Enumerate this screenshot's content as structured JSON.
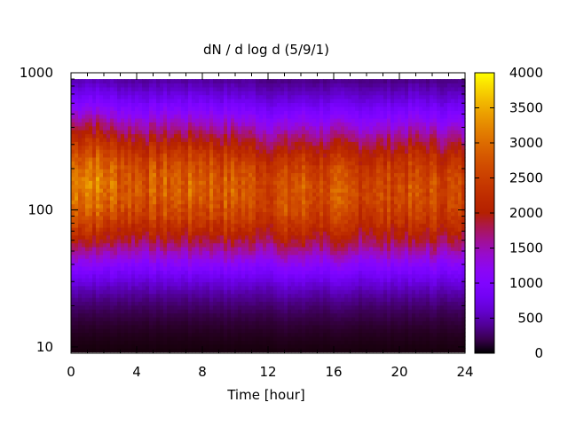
{
  "chart_data": {
    "type": "heatmap",
    "title": "dN / d log d (5/9/1)",
    "xlabel": "Time [hour]",
    "ylabel": "",
    "xlim": [
      0,
      24
    ],
    "ylim": [
      9,
      1000
    ],
    "y_scale": "log",
    "x_ticks": [
      "0",
      "4",
      "8",
      "12",
      "16",
      "20",
      "24"
    ],
    "y_ticks": [
      "10",
      "100",
      "1000"
    ],
    "colorbar": {
      "range": [
        0,
        4000
      ],
      "ticks": [
        "0",
        "500",
        "1000",
        "1500",
        "2000",
        "2500",
        "3000",
        "3500",
        "4000"
      ],
      "palette": "black-purple-red-orange-yellow"
    },
    "data_extent_y": [
      9.2,
      900
    ],
    "peak_band": {
      "diameter_center": 150,
      "diameter_range": [
        90,
        280
      ],
      "value_range": [
        2200,
        3300
      ]
    },
    "hourly_profile": {
      "hours": [
        0,
        1,
        2,
        3,
        4,
        5,
        6,
        7,
        8,
        9,
        10,
        11,
        12,
        13,
        14,
        15,
        16,
        17,
        18,
        19,
        20,
        21,
        22,
        23,
        24
      ],
      "peak_value": [
        3200,
        3350,
        3050,
        2950,
        2850,
        2800,
        2900,
        2850,
        2950,
        2850,
        2850,
        2750,
        2650,
        2700,
        2800,
        2650,
        2750,
        2600,
        2650,
        2600,
        2700,
        2650,
        2700,
        2600,
        2550
      ],
      "peak_diameter": [
        150,
        155,
        155,
        150,
        150,
        150,
        150,
        150,
        150,
        145,
        145,
        145,
        140,
        135,
        140,
        140,
        140,
        140,
        140,
        140,
        140,
        145,
        140,
        140,
        140
      ]
    }
  }
}
